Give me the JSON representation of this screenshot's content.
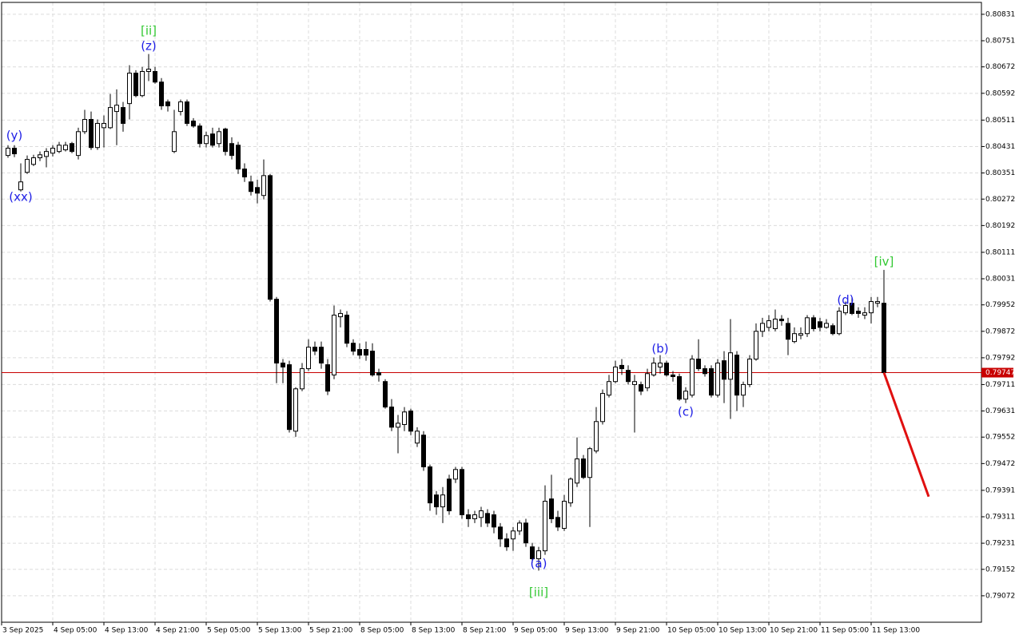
{
  "chart_data": {
    "type": "candlestick",
    "ylim": [
      0.78992,
      0.80867
    ],
    "yticks": [
      0.80831,
      0.80751,
      0.80672,
      0.80592,
      0.80511,
      0.80431,
      0.80351,
      0.80272,
      0.80192,
      0.80111,
      0.80031,
      0.79952,
      0.79872,
      0.79792,
      0.79711,
      0.79631,
      0.79552,
      0.79472,
      0.79391,
      0.79311,
      0.79231,
      0.79152,
      0.79072
    ],
    "xtick_labels": [
      "3 Sep 2025",
      "4 Sep 05:00",
      "4 Sep 13:00",
      "4 Sep 21:00",
      "5 Sep 05:00",
      "5 Sep 13:00",
      "5 Sep 21:00",
      "8 Sep 05:00",
      "8 Sep 13:00",
      "8 Sep 21:00",
      "9 Sep 05:00",
      "9 Sep 13:00",
      "9 Sep 21:00",
      "10 Sep 05:00",
      "10 Sep 13:00",
      "10 Sep 21:00",
      "11 Sep 05:00",
      "11 Sep 13:00"
    ],
    "grid": true,
    "up_color": "#ffffff",
    "down_color": "#000000",
    "open": [
      0.80404,
      0.80426,
      0.803,
      0.80353,
      0.80377,
      0.80397,
      0.80401,
      0.80411,
      0.80416,
      0.80421,
      0.8044,
      0.80404,
      0.80476,
      0.80513,
      0.80428,
      0.80488,
      0.80488,
      0.80537,
      0.80549,
      0.80561,
      0.80653,
      0.80585,
      0.80658,
      0.80658,
      0.80626,
      0.80566,
      0.80416,
      0.80537,
      0.80566,
      0.80508,
      0.80493,
      0.8044,
      0.80469,
      0.8044,
      0.80484,
      0.8044,
      0.80435,
      0.80363,
      0.80324,
      0.80307,
      0.80283,
      0.80343,
      0.79969,
      0.79776,
      0.79771,
      0.7957,
      0.79698,
      0.79759,
      0.79824,
      0.79824,
      0.79771,
      0.7974,
      0.79916,
      0.79921,
      0.79836,
      0.79817,
      0.79817,
      0.79812,
      0.79747,
      0.7972,
      0.79643,
      0.79582,
      0.7959,
      0.79631,
      0.79534,
      0.79558,
      0.79462,
      0.79377,
      0.79341,
      0.79425,
      0.79425,
      0.79454,
      0.79317,
      0.79305,
      0.79309,
      0.79321,
      0.79317,
      0.7928,
      0.79244,
      0.79244,
      0.79268,
      0.79292,
      0.7922,
      0.79184,
      0.79208,
      0.79365,
      0.79309,
      0.79276,
      0.79353,
      0.79413,
      0.79486,
      0.7943,
      0.7951,
      0.79599,
      0.79679,
      0.7972,
      0.79769,
      0.79754,
      0.79711,
      0.79711,
      0.79701,
      0.7974,
      0.79764,
      0.79776,
      0.7974,
      0.79735,
      0.79667,
      0.79679,
      0.79788,
      0.79759,
      0.79759,
      0.79679,
      0.79783,
      0.79727,
      0.798,
      0.79679,
      0.79711,
      0.79788,
      0.79872,
      0.79884,
      0.7988,
      0.79909,
      0.79896,
      0.79841,
      0.7986,
      0.79865,
      0.79913,
      0.79901,
      0.79884,
      0.79889,
      0.79865,
      0.79928,
      0.79957,
      0.79933,
      0.79921,
      0.79928,
      0.79957,
      0.79957
    ],
    "high": [
      0.80435,
      0.80435,
      0.8038,
      0.80404,
      0.80406,
      0.80416,
      0.80426,
      0.80435,
      0.80445,
      0.80445,
      0.80445,
      0.80488,
      0.80542,
      0.80537,
      0.80513,
      0.80525,
      0.8059,
      0.80604,
      0.80566,
      0.80677,
      0.80662,
      0.80672,
      0.80711,
      0.80672,
      0.80638,
      0.80573,
      0.80542,
      0.80573,
      0.80573,
      0.80517,
      0.80501,
      0.80476,
      0.80488,
      0.80488,
      0.80488,
      0.80459,
      0.80445,
      0.8038,
      0.80343,
      0.80331,
      0.80392,
      0.80348,
      0.79976,
      0.79788,
      0.79783,
      0.79703,
      0.79776,
      0.79848,
      0.79841,
      0.79841,
      0.79788,
      0.7995,
      0.79938,
      0.79933,
      0.79848,
      0.79836,
      0.79841,
      0.79836,
      0.79759,
      0.79727,
      0.79667,
      0.79619,
      0.79643,
      0.79638,
      0.79582,
      0.7957,
      0.79469,
      0.79389,
      0.79401,
      0.79438,
      0.79462,
      0.79462,
      0.79334,
      0.79329,
      0.79341,
      0.79334,
      0.79329,
      0.79292,
      0.79261,
      0.7928,
      0.793,
      0.79305,
      0.79232,
      0.7922,
      0.79406,
      0.79438,
      0.79329,
      0.79377,
      0.7943,
      0.79551,
      0.79498,
      0.79522,
      0.79643,
      0.79696,
      0.7974,
      0.79783,
      0.79788,
      0.79769,
      0.7974,
      0.7972,
      0.79759,
      0.79793,
      0.798,
      0.79783,
      0.79752,
      0.79744,
      0.79703,
      0.798,
      0.79848,
      0.79769,
      0.79769,
      0.79788,
      0.79812,
      0.79909,
      0.79812,
      0.7972,
      0.798,
      0.79896,
      0.79913,
      0.79921,
      0.79938,
      0.79921,
      0.79913,
      0.79884,
      0.79884,
      0.79921,
      0.79921,
      0.79913,
      0.79909,
      0.79896,
      0.79945,
      0.79962,
      0.79976,
      0.79945,
      0.79945,
      0.79976,
      0.79976,
      0.80058
    ],
    "low": [
      0.80397,
      0.80399,
      0.80295,
      0.80348,
      0.80372,
      0.80387,
      0.80368,
      0.80401,
      0.80411,
      0.80416,
      0.80411,
      0.80392,
      0.80469,
      0.80421,
      0.80421,
      0.80428,
      0.80484,
      0.80435,
      0.80476,
      0.80513,
      0.8058,
      0.8058,
      0.80629,
      0.80621,
      0.80542,
      0.80537,
      0.80411,
      0.80525,
      0.80493,
      0.80488,
      0.80428,
      0.80428,
      0.80428,
      0.80428,
      0.80404,
      0.80392,
      0.80348,
      0.80324,
      0.80283,
      0.80259,
      0.80271,
      0.79962,
      0.79715,
      0.79715,
      0.79566,
      0.79553,
      0.79691,
      0.79752,
      0.798,
      0.79759,
      0.79679,
      0.79727,
      0.79884,
      0.79824,
      0.798,
      0.79788,
      0.79783,
      0.79735,
      0.7972,
      0.79638,
      0.7957,
      0.79503,
      0.7957,
      0.79558,
      0.79522,
      0.7945,
      0.79329,
      0.79317,
      0.79292,
      0.79317,
      0.79413,
      0.79305,
      0.7928,
      0.79292,
      0.7928,
      0.7928,
      0.79261,
      0.7922,
      0.79208,
      0.79208,
      0.79256,
      0.7922,
      0.79172,
      0.79148,
      0.79196,
      0.79292,
      0.79268,
      0.79268,
      0.79341,
      0.79401,
      0.79425,
      0.7928,
      0.79503,
      0.7959,
      0.79672,
      0.79715,
      0.7974,
      0.79711,
      0.79566,
      0.79679,
      0.79691,
      0.79735,
      0.79744,
      0.79735,
      0.7972,
      0.79662,
      0.79655,
      0.79672,
      0.79752,
      0.79735,
      0.79672,
      0.79672,
      0.79655,
      0.79607,
      0.79631,
      0.79643,
      0.79703,
      0.79783,
      0.79855,
      0.79872,
      0.79872,
      0.79889,
      0.798,
      0.79836,
      0.79848,
      0.79855,
      0.79872,
      0.79872,
      0.7988,
      0.7986,
      0.7986,
      0.79921,
      0.79921,
      0.79913,
      0.79909,
      0.79896,
      0.79945,
      0.79747
    ],
    "close": [
      0.80426,
      0.80409,
      0.80324,
      0.80392,
      0.80397,
      0.80406,
      0.80416,
      0.80426,
      0.80435,
      0.80435,
      0.80416,
      0.80476,
      0.80513,
      0.80428,
      0.80501,
      0.80501,
      0.80549,
      0.80556,
      0.80501,
      0.80653,
      0.80585,
      0.80658,
      0.80665,
      0.80626,
      0.80554,
      0.80554,
      0.80476,
      0.80566,
      0.80501,
      0.80493,
      0.8044,
      0.80464,
      0.80435,
      0.80476,
      0.80416,
      0.80404,
      0.80363,
      0.80339,
      0.80295,
      0.8029,
      0.80343,
      0.79969,
      0.79776,
      0.79764,
      0.79575,
      0.79698,
      0.79759,
      0.79824,
      0.79812,
      0.79776,
      0.79691,
      0.79921,
      0.79926,
      0.79836,
      0.79812,
      0.798,
      0.798,
      0.7974,
      0.7974,
      0.79643,
      0.79582,
      0.79594,
      0.79628,
      0.7957,
      0.7957,
      0.79462,
      0.79353,
      0.79341,
      0.79377,
      0.79329,
      0.79454,
      0.79317,
      0.79305,
      0.79317,
      0.79329,
      0.79292,
      0.7928,
      0.79244,
      0.7922,
      0.79268,
      0.79292,
      0.79232,
      0.79184,
      0.79208,
      0.79358,
      0.79305,
      0.7928,
      0.79358,
      0.79425,
      0.79486,
      0.7943,
      0.79517,
      0.79599,
      0.79684,
      0.7972,
      0.79764,
      0.79759,
      0.7972,
      0.7972,
      0.79691,
      0.79744,
      0.79776,
      0.79776,
      0.7974,
      0.79735,
      0.79667,
      0.79691,
      0.79788,
      0.79759,
      0.79744,
      0.79679,
      0.79776,
      0.79727,
      0.79807,
      0.79679,
      0.79711,
      0.79788,
      0.79872,
      0.79896,
      0.79904,
      0.79909,
      0.79904,
      0.79848,
      0.79865,
      0.79865,
      0.79913,
      0.7988,
      0.79884,
      0.79896,
      0.79865,
      0.79933,
      0.7995,
      0.79926,
      0.79926,
      0.79928,
      0.79962,
      0.79962,
      0.79747
    ],
    "price_line": {
      "value": 0.79747,
      "color": "#c80000"
    },
    "forecast": {
      "color": "#e01010",
      "values": [
        0.79747,
        0.79372
      ]
    },
    "annotations": [
      {
        "text": "[ii]",
        "color": "#32c832"
      },
      {
        "text": "(z)",
        "color": "#1e1ee6"
      },
      {
        "text": "(y)",
        "color": "#1e1ee6"
      },
      {
        "text": "(xx)",
        "color": "#1e1ee6"
      },
      {
        "text": "(a)",
        "color": "#1e1ee6"
      },
      {
        "text": "[iii]",
        "color": "#32c832"
      },
      {
        "text": "(b)",
        "color": "#1e1ee6"
      },
      {
        "text": "(c)",
        "color": "#1e1ee6"
      },
      {
        "text": "(d)",
        "color": "#1e1ee6"
      },
      {
        "text": "[iv]",
        "color": "#32c832"
      }
    ]
  }
}
